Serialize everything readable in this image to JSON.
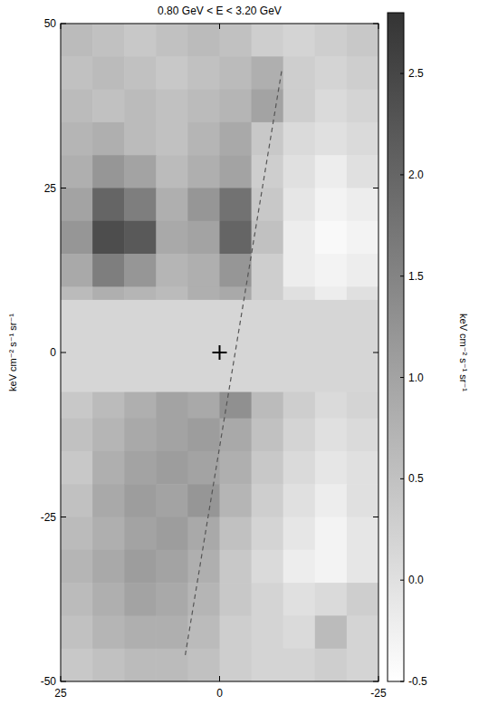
{
  "chart_data": {
    "type": "heatmap",
    "title": "0.80 GeV < E < 3.20 GeV",
    "ylabel": "keV cm⁻² s⁻¹ sr⁻¹",
    "xlim": [
      25,
      -25
    ],
    "ylim": [
      -50,
      50
    ],
    "xticks": [
      25,
      0,
      -25
    ],
    "yticks": [
      -50,
      -25,
      0,
      25,
      50
    ],
    "x": [
      22.5,
      17.5,
      12.5,
      7.5,
      2.5,
      -2.5,
      -7.5,
      -12.5,
      -17.5,
      -22.5
    ],
    "y": [
      47.5,
      42.5,
      37.5,
      32.5,
      27.5,
      22.5,
      17.5,
      12.5,
      7.5,
      2.5,
      -2.5,
      -7.5,
      -12.5,
      -17.5,
      -22.5,
      -27.5,
      -32.5,
      -37.5,
      -42.5,
      -47.5
    ],
    "cells": [
      [
        0.6,
        0.5,
        0.4,
        0.5,
        0.6,
        0.5,
        0.3,
        0.2,
        0.3,
        0.4
      ],
      [
        0.5,
        0.6,
        0.5,
        0.4,
        0.5,
        0.6,
        0.8,
        0.3,
        0.2,
        0.3
      ],
      [
        0.6,
        0.5,
        0.6,
        0.5,
        0.6,
        0.7,
        1.0,
        0.3,
        0.1,
        0.2
      ],
      [
        0.7,
        0.8,
        0.6,
        0.5,
        0.7,
        0.9,
        0.4,
        0.1,
        0.0,
        0.1
      ],
      [
        0.8,
        1.2,
        1.0,
        0.6,
        0.8,
        1.0,
        0.3,
        0.0,
        -0.2,
        0.0
      ],
      [
        1.0,
        2.0,
        1.6,
        0.8,
        1.2,
        1.8,
        0.4,
        -0.1,
        -0.3,
        -0.2
      ],
      [
        1.2,
        2.4,
        2.2,
        0.9,
        1.0,
        2.0,
        0.5,
        -0.2,
        -0.4,
        -0.3
      ],
      [
        0.9,
        1.6,
        1.2,
        0.7,
        0.8,
        1.2,
        0.3,
        -0.2,
        -0.3,
        -0.2
      ],
      [
        0.6,
        0.8,
        0.7,
        0.6,
        0.8,
        0.9,
        0.3,
        0.0,
        -0.2,
        0.0
      ],
      [
        null,
        null,
        null,
        null,
        null,
        null,
        null,
        null,
        null,
        null
      ],
      [
        null,
        null,
        null,
        null,
        null,
        null,
        null,
        null,
        null,
        null
      ],
      [
        0.4,
        0.6,
        0.8,
        1.0,
        0.9,
        1.3,
        0.6,
        0.3,
        0.1,
        0.2
      ],
      [
        0.5,
        0.7,
        0.9,
        1.0,
        1.1,
        0.9,
        0.5,
        0.2,
        0.0,
        0.1
      ],
      [
        0.4,
        0.8,
        1.0,
        1.1,
        1.0,
        0.8,
        0.4,
        0.1,
        -0.1,
        0.0
      ],
      [
        0.5,
        0.9,
        1.1,
        1.0,
        1.2,
        0.7,
        0.3,
        0.0,
        -0.2,
        0.0
      ],
      [
        0.6,
        0.8,
        1.0,
        1.1,
        0.9,
        0.5,
        0.2,
        -0.1,
        -0.3,
        -0.1
      ],
      [
        0.7,
        0.9,
        1.1,
        1.0,
        0.8,
        0.4,
        0.1,
        -0.2,
        -0.3,
        -0.1
      ],
      [
        0.6,
        0.8,
        1.0,
        0.9,
        0.7,
        0.4,
        0.2,
        0.0,
        0.1,
        0.3
      ],
      [
        0.5,
        0.7,
        0.8,
        0.8,
        0.6,
        0.3,
        0.2,
        0.1,
        0.6,
        0.2
      ],
      [
        0.4,
        0.5,
        0.6,
        0.6,
        0.5,
        0.3,
        0.2,
        0.2,
        0.3,
        0.2
      ]
    ],
    "mask": {
      "ylim": [
        -6,
        8
      ]
    },
    "center": {
      "x": 0,
      "y": 0
    },
    "line": {
      "x": [
        5.4,
        -9.8
      ],
      "y": [
        -46,
        43
      ],
      "line_style": "dashed"
    },
    "colorbar": {
      "label": "keV cm⁻² s⁻¹ sr⁻¹",
      "range": [
        -0.5,
        2.8
      ],
      "ticks": [
        -0.5,
        {
          "value": 0,
          "label": "0.0"
        },
        0.5,
        {
          "value": 1,
          "label": "1.0"
        },
        1.5,
        {
          "value": 2,
          "label": "2.0"
        },
        2.5
      ]
    }
  }
}
